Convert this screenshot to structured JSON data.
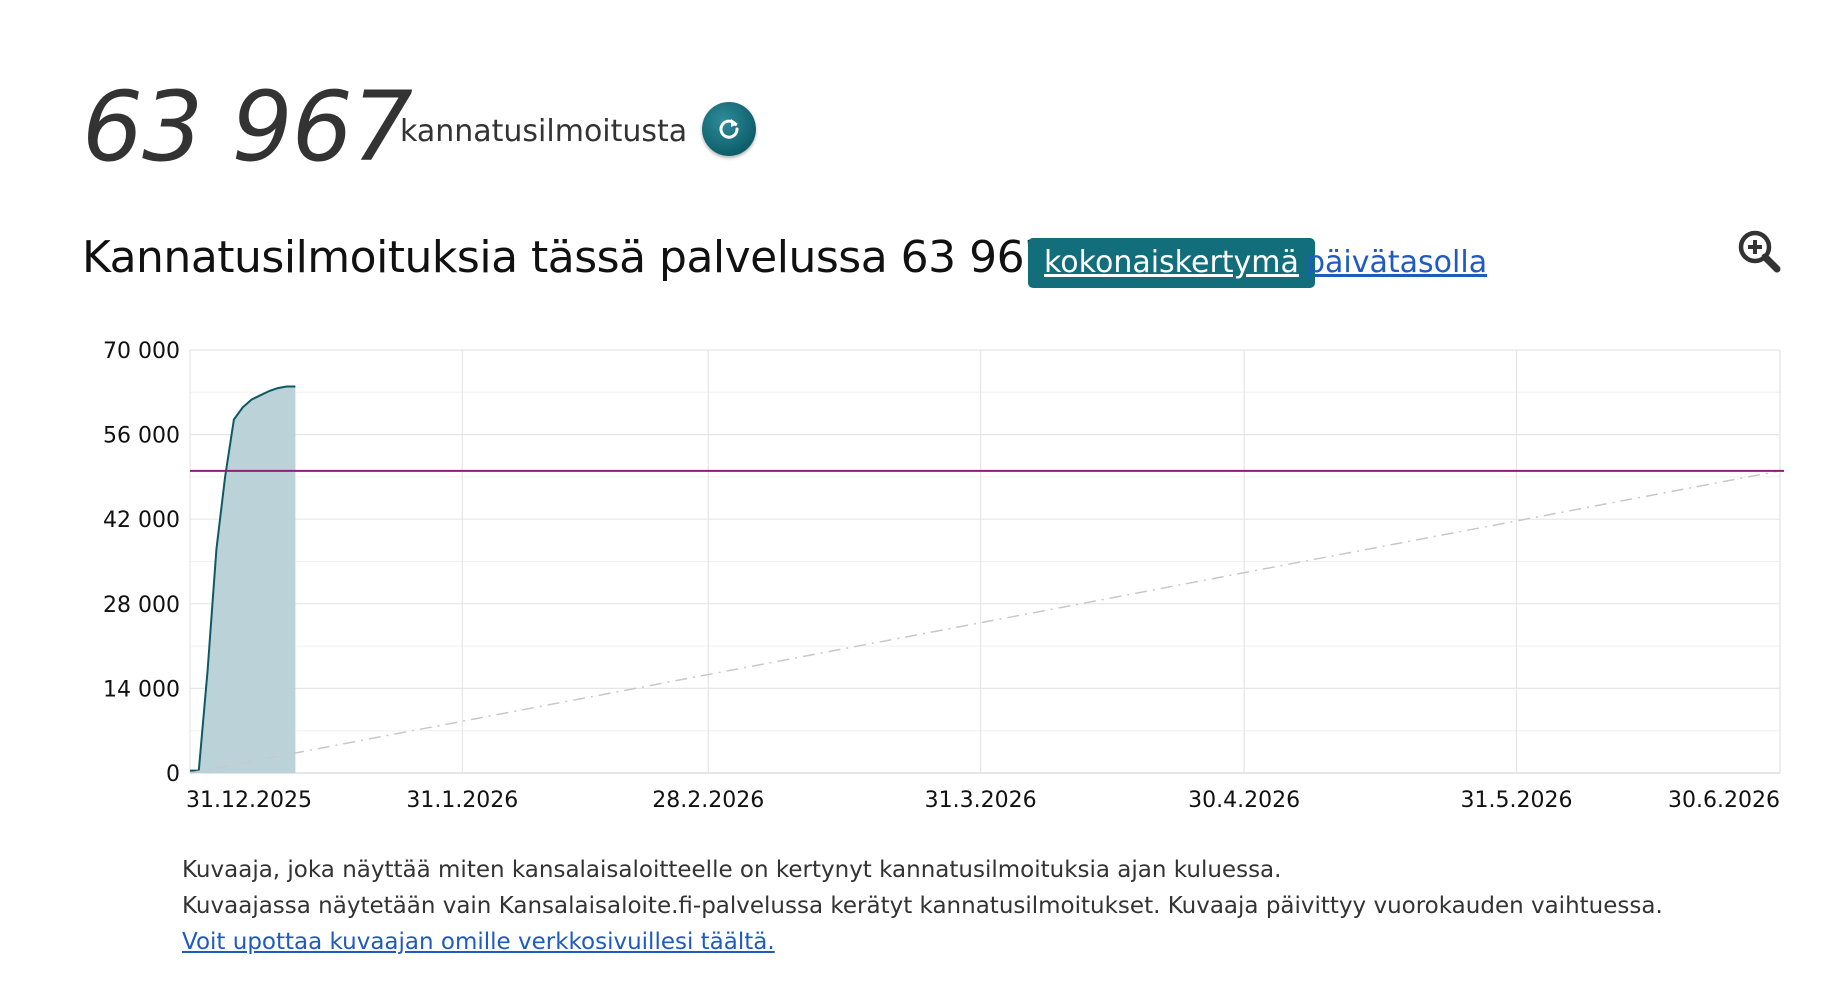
{
  "summary": {
    "count": "63 967",
    "label": "kannatusilmoitusta"
  },
  "heading": {
    "title": "Kannatusilmoituksia tässä palvelussa 63 967",
    "toggle_cumulative": "kokonaiskertymä",
    "toggle_daily": "päivätasolla"
  },
  "icons": {
    "refresh": "refresh-icon",
    "zoom": "zoom-in-icon"
  },
  "colors": {
    "series_line": "#0d5a62",
    "series_fill": "#b7d1d6",
    "target_line": "#8b1f7a",
    "accent": "#126e7a",
    "link": "#1f5bbf"
  },
  "chart_data": {
    "type": "area",
    "x_axis_type": "date",
    "xlim": [
      "2025-12-31",
      "2026-06-30"
    ],
    "ylim": [
      0,
      70000
    ],
    "y_ticks": [
      0,
      14000,
      28000,
      42000,
      56000,
      70000
    ],
    "y_tick_labels": [
      "0",
      "14 000",
      "28 000",
      "42 000",
      "56 000",
      "70 000"
    ],
    "x_ticks": [
      "2025-12-31",
      "2026-01-31",
      "2026-02-28",
      "2026-03-31",
      "2026-04-30",
      "2026-05-31",
      "2026-06-30"
    ],
    "x_tick_labels": [
      "31.12.2025",
      "31.1.2026",
      "28.2.2026",
      "31.3.2026",
      "30.4.2026",
      "31.5.2026",
      "30.6.2026"
    ],
    "grid": true,
    "series": [
      {
        "x": [
          "2025-12-31",
          "2026-01-01",
          "2026-01-02",
          "2026-01-03",
          "2026-01-04",
          "2026-01-05",
          "2026-01-06",
          "2026-01-07",
          "2026-01-08",
          "2026-01-09",
          "2026-01-10",
          "2026-01-11",
          "2026-01-12"
        ],
        "y": [
          400,
          400,
          17000,
          37000,
          49000,
          58500,
          60500,
          61800,
          62500,
          63200,
          63700,
          63967,
          63967
        ]
      }
    ],
    "target_line": {
      "y": 50000
    },
    "pace_line": {
      "from": [
        "2025-12-31",
        0
      ],
      "to": [
        "2026-06-30",
        50000
      ]
    }
  },
  "caption": {
    "line1": "Kuvaaja, joka näyttää miten kansalaisaloitteelle on kertynyt kannatusilmoituksia ajan kuluessa.",
    "line2": "Kuvaajassa näytetään vain Kansalaisaloite.fi-palvelussa kerätyt kannatusilmoitukset. Kuvaaja päivittyy vuorokauden vaihtuessa.",
    "embed_link": "Voit upottaa kuvaajan omille verkkosivuillesi täältä."
  }
}
